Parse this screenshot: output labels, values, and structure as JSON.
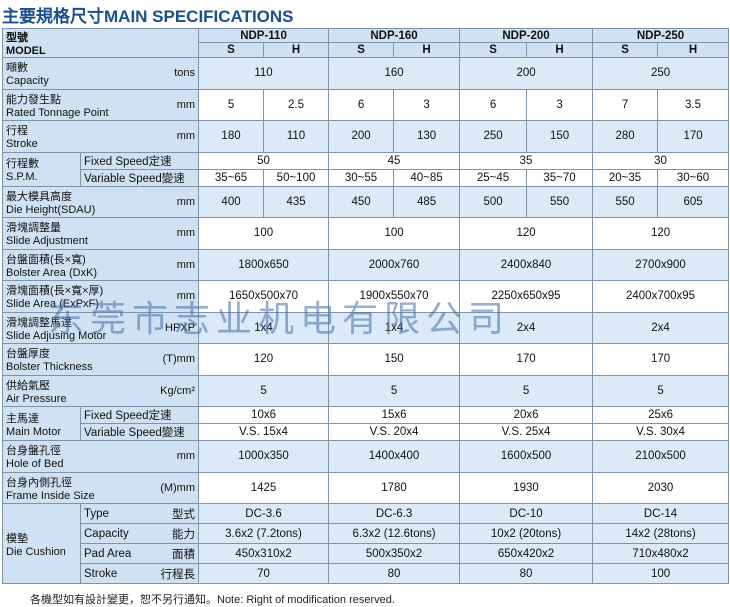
{
  "title": "主要規格尺寸MAIN SPECIFICATIONS",
  "header": {
    "model_zh": "型號",
    "model_en": "MODEL",
    "models": [
      "NDP-110",
      "NDP-160",
      "NDP-200",
      "NDP-250"
    ],
    "sub": [
      "S",
      "H",
      "S",
      "H",
      "S",
      "H",
      "S",
      "H"
    ]
  },
  "rows": [
    {
      "zh": "噸數",
      "en": "Capacity",
      "unit": "tons",
      "cells": [
        "110",
        "160",
        "200",
        "250"
      ]
    },
    {
      "zh": "能力發生點",
      "en": "Rated Tonnage Point",
      "unit": "mm",
      "cells": [
        "5",
        "2.5",
        "6",
        "3",
        "6",
        "3",
        "7",
        "3.5"
      ]
    },
    {
      "zh": "行程",
      "en": "Stroke",
      "unit": "mm",
      "cells": [
        "180",
        "110",
        "200",
        "130",
        "250",
        "150",
        "280",
        "170"
      ]
    },
    {
      "zh": "行程數",
      "en": "S.P.M.",
      "subrows": [
        {
          "label": "Fixed Speed定速",
          "cells": [
            "50",
            "45",
            "35",
            "30"
          ]
        },
        {
          "label": "Variable Speed變速",
          "cells": [
            "35~65",
            "50~100",
            "30~55",
            "40~85",
            "25~45",
            "35~70",
            "20~35",
            "30~60"
          ]
        }
      ]
    },
    {
      "zh": "最大模具高度",
      "en": "Die Height(SDAU)",
      "unit": "mm",
      "cells": [
        "400",
        "435",
        "450",
        "485",
        "500",
        "550",
        "550",
        "605"
      ]
    },
    {
      "zh": "滑塊調整量",
      "en": "Slide Adjustment",
      "unit": "mm",
      "cells": [
        "100",
        "100",
        "120",
        "120"
      ]
    },
    {
      "zh": "台盤面積(長×寬)",
      "en": "Bolster Area (DxK)",
      "unit": "mm",
      "cells": [
        "1800x650",
        "2000x760",
        "2400x840",
        "2700x900"
      ]
    },
    {
      "zh": "滑塊面積(長×寬×厚)",
      "en": "Slide Area (ExPxF)",
      "unit": "mm",
      "cells": [
        "1650x500x70",
        "1900x550x70",
        "2250x650x95",
        "2400x700x95"
      ]
    },
    {
      "zh": "滑塊調整馬達",
      "en": "Slide Adjusing Motor",
      "unit": "HPXP",
      "cells": [
        "1x4",
        "1x4",
        "2x4",
        "2x4"
      ]
    },
    {
      "zh": "台盤厚度",
      "en": "Bolster Thickness",
      "unit": "(T)mm",
      "cells": [
        "120",
        "150",
        "170",
        "170"
      ]
    },
    {
      "zh": "供給氣壓",
      "en": "Air Pressure",
      "unit": "Kg/cm²",
      "cells": [
        "5",
        "5",
        "5",
        "5"
      ]
    },
    {
      "zh": "主馬達",
      "en": "Main Motor",
      "subrows": [
        {
          "label": "Fixed Speed定速",
          "cells": [
            "10x6",
            "15x6",
            "20x6",
            "25x6"
          ]
        },
        {
          "label": "Variable Speed變速",
          "cells": [
            "V.S. 15x4",
            "V.S. 20x4",
            "V.S. 25x4",
            "V.S. 30x4"
          ]
        }
      ]
    },
    {
      "zh": "台身盤孔徑",
      "en": "Hole of Bed",
      "unit": "mm",
      "cells": [
        "1000x350",
        "1400x400",
        "1600x500",
        "2100x500"
      ]
    },
    {
      "zh": "台身內側孔徑",
      "en": "Frame Inside Size",
      "unit": "(M)mm",
      "cells": [
        "1425",
        "1780",
        "1930",
        "2030"
      ]
    },
    {
      "zh": "模墊",
      "en": "Die Cushion",
      "subrows": [
        {
          "label": "Type",
          "label_zh": "型式",
          "cells": [
            "DC-3.6",
            "DC-6.3",
            "DC-10",
            "DC-14"
          ]
        },
        {
          "label": "Capacity",
          "label_zh": "能力",
          "cells": [
            "3.6x2 (7.2tons)",
            "6.3x2 (12.6tons)",
            "10x2 (20tons)",
            "14x2 (28tons)"
          ]
        },
        {
          "label": "Pad Area",
          "label_zh": "面積",
          "cells": [
            "450x310x2",
            "500x350x2",
            "650x420x2",
            "710x480x2"
          ]
        },
        {
          "label": "Stroke",
          "label_zh": "行程長",
          "cells": [
            "70",
            "80",
            "80",
            "100"
          ]
        }
      ]
    }
  ],
  "watermark": "东莞市志业机电有限公司",
  "footnote": "各機型如有設計變更，恕不另行通知。Note: Right of modification reserved."
}
